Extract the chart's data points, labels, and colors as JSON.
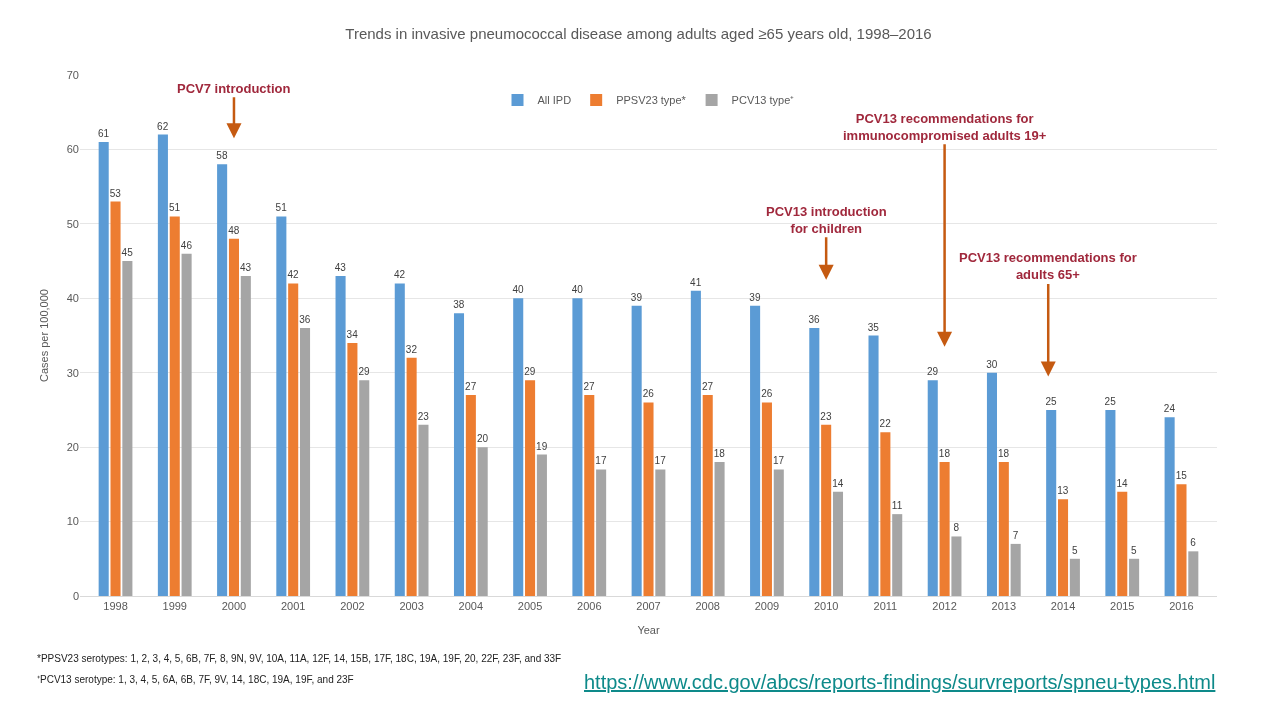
{
  "chart_data": {
    "type": "bar",
    "title": "Trends in invasive pneumococcal disease among adults aged ≥65 years old, 1998–2016",
    "xlabel": "Year",
    "ylabel": "Cases per 100,000",
    "categories": [
      "1998",
      "1999",
      "2000",
      "2001",
      "2002",
      "2003",
      "2004",
      "2005",
      "2006",
      "2007",
      "2008",
      "2009",
      "2010",
      "2011",
      "2012",
      "2013",
      "2014",
      "2015",
      "2016"
    ],
    "series": [
      {
        "name": "All IPD",
        "color": "#5b9bd5",
        "values": [
          61,
          62,
          58,
          51,
          43,
          42,
          38,
          40,
          40,
          39,
          41,
          39,
          36,
          35,
          29,
          30,
          25,
          25,
          24
        ]
      },
      {
        "name": "PPSV23 type*",
        "color": "#ed7d31",
        "values": [
          53,
          51,
          48,
          42,
          34,
          32,
          27,
          29,
          27,
          26,
          27,
          26,
          23,
          22,
          18,
          18,
          13,
          14,
          15
        ]
      },
      {
        "name": "PCV13 type⁺",
        "color": "#a5a5a5",
        "values": [
          45,
          46,
          43,
          36,
          29,
          23,
          20,
          19,
          17,
          17,
          18,
          17,
          14,
          11,
          8,
          7,
          5,
          5,
          6
        ]
      }
    ],
    "ylim": [
      0,
      70
    ],
    "yticks": [
      0,
      10,
      20,
      30,
      40,
      50,
      60,
      70
    ],
    "grid": "y",
    "legend": "top",
    "data_labels": true,
    "annotations": [
      "PCV7 introduction",
      "PCV13 introduction\nfor children",
      "PCV13 recommendations for\nimmunocompromised adults 19+",
      "PCV13 recommendations for\nadults 65+",
      "*PPSV23 serotypes: 1, 2, 3, 4, 5, 6B, 7F, 8, 9N, 9V, 10A, 11A, 12F, 14, 15B, 17F, 18C, 19A, 19F, 20, 22F, 23F, and 33F",
      "⁺PCV13 serotype: 1, 3, 4, 5, 6A, 6B, 7F, 9V, 14, 18C, 19A, 19F, and 23F",
      "https://www.cdc.gov/abcs/reports-findings/survreports/spneu-types.html"
    ]
  }
}
